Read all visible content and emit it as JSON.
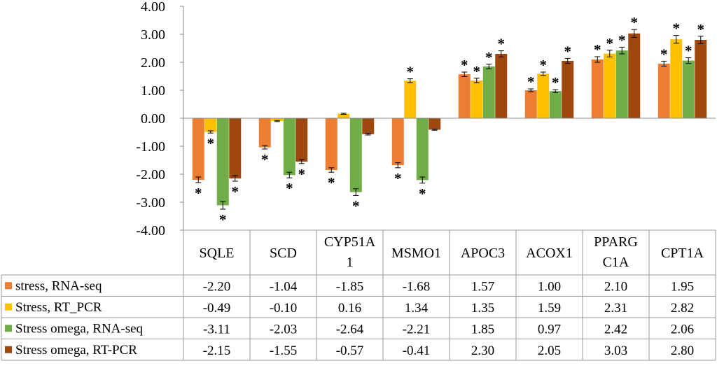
{
  "chart_data": {
    "type": "bar",
    "title": "",
    "xlabel": "",
    "ylabel": "",
    "ylim": [
      -4,
      4
    ],
    "y_ticks": [
      "-4.00",
      "-3.00",
      "-2.00",
      "-1.00",
      "0.00",
      "1.00",
      "2.00",
      "3.00",
      "4.00"
    ],
    "tick_values": [
      -4,
      -3,
      -2,
      -1,
      0,
      1,
      2,
      3,
      4
    ],
    "categories": [
      [
        "SQLE"
      ],
      [
        "SCD"
      ],
      [
        "CYP51A",
        "1"
      ],
      [
        "MSMO1"
      ],
      [
        "APOC3"
      ],
      [
        "ACOX1"
      ],
      [
        "PPARG",
        "C1A"
      ],
      [
        "CPT1A"
      ]
    ],
    "series": [
      {
        "name": "stress, RNA-seq",
        "color": "#ED7D31",
        "values": [
          -2.2,
          -1.04,
          -1.85,
          -1.68,
          1.57,
          1.0,
          2.1,
          1.95
        ],
        "labels": [
          "-2.20",
          "-1.04",
          "-1.85",
          "-1.68",
          "1.57",
          "1.00",
          "2.10",
          "1.95"
        ],
        "errors": [
          0.1,
          0.06,
          0.08,
          0.09,
          0.08,
          0.05,
          0.1,
          0.09
        ],
        "significant": [
          true,
          true,
          true,
          true,
          true,
          true,
          true,
          true
        ]
      },
      {
        "name": "Stress, RT_PCR",
        "color": "#FFC000",
        "values": [
          -0.49,
          -0.1,
          0.16,
          1.34,
          1.35,
          1.59,
          2.31,
          2.82
        ],
        "labels": [
          "-0.49",
          "-0.10",
          "0.16",
          "1.34",
          "1.35",
          "1.59",
          "2.31",
          "2.82"
        ],
        "errors": [
          0.04,
          0.02,
          0.02,
          0.07,
          0.08,
          0.06,
          0.12,
          0.14
        ],
        "significant": [
          true,
          false,
          false,
          true,
          true,
          true,
          true,
          true
        ]
      },
      {
        "name": "Stress omega, RNA-seq",
        "color": "#70AD47",
        "values": [
          -3.11,
          -2.03,
          -2.64,
          -2.21,
          1.85,
          0.97,
          2.42,
          2.06
        ],
        "labels": [
          "-3.11",
          "-2.03",
          "-2.64",
          "-2.21",
          "1.85",
          "0.97",
          "2.42",
          "2.06"
        ],
        "errors": [
          0.14,
          0.1,
          0.12,
          0.11,
          0.08,
          0.05,
          0.12,
          0.1
        ],
        "significant": [
          true,
          true,
          true,
          true,
          true,
          true,
          true,
          true
        ]
      },
      {
        "name": "Stress omega, RT-PCR",
        "color": "#9E480E",
        "values": [
          -2.15,
          -1.55,
          -0.57,
          -0.41,
          2.3,
          2.05,
          3.03,
          2.8
        ],
        "labels": [
          "-2.15",
          "-1.55",
          "-0.57",
          "-0.41",
          "2.30",
          "2.05",
          "3.03",
          "2.80"
        ],
        "errors": [
          0.1,
          0.07,
          0.03,
          0.02,
          0.11,
          0.09,
          0.14,
          0.13
        ],
        "significant": [
          true,
          true,
          false,
          false,
          true,
          true,
          true,
          true
        ]
      }
    ],
    "significance_marker": "*",
    "grid": false,
    "legend": "data-table-left"
  }
}
